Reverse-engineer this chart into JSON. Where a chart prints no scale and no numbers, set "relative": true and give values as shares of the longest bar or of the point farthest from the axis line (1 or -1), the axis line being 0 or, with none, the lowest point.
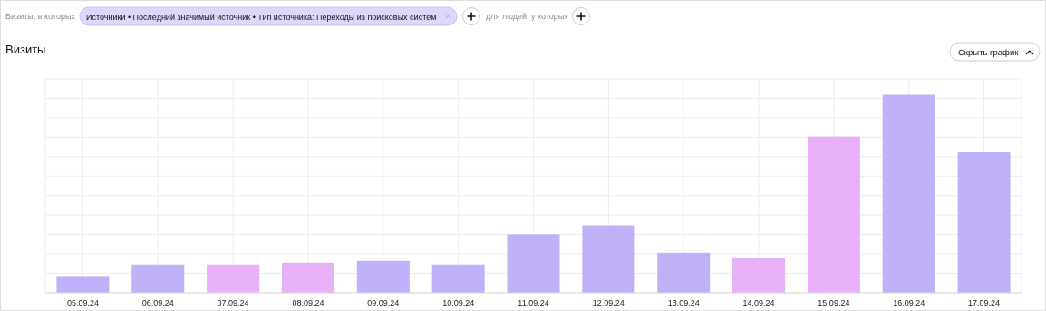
{
  "chart_data": {
    "type": "bar",
    "title": "Визиты",
    "relative": true,
    "grid": true,
    "categories": [
      "05.09.24",
      "06.09.24",
      "07.09.24",
      "08.09.24",
      "09.09.24",
      "10.09.24",
      "11.09.24",
      "12.09.24",
      "13.09.24",
      "14.09.24",
      "15.09.24",
      "16.09.24",
      "17.09.24"
    ],
    "values": [
      0.085,
      0.143,
      0.143,
      0.152,
      0.161,
      0.143,
      0.296,
      0.341,
      0.202,
      0.179,
      0.789,
      1,
      0.709
    ],
    "colors": [
      "#c0b0f8",
      "#c0b0f8",
      "#e8b0f8",
      "#e8b0f8",
      "#c0b0f8",
      "#c0b0f8",
      "#c0b0f8",
      "#c0b0f8",
      "#c0b0f8",
      "#e8b0f8",
      "#e8b0f8",
      "#c0b0f8",
      "#c0b0f8"
    ],
    "annotations": [
      "Визиты, в которых",
      "Источники • Последний значимый источник • Тип источника: Переходы из поисковых систем",
      "для людей, у которых",
      "Скрыть график"
    ]
  }
}
